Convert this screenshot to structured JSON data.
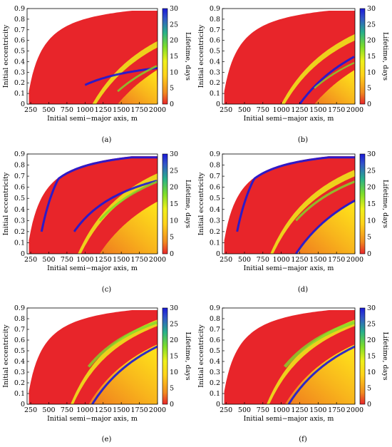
{
  "figure": {
    "panels": [
      {
        "id": "a",
        "caption": "(a)"
      },
      {
        "id": "b",
        "caption": "(b)"
      },
      {
        "id": "c",
        "caption": "(c)"
      },
      {
        "id": "d",
        "caption": "(d)"
      },
      {
        "id": "e",
        "caption": "(e)"
      },
      {
        "id": "f",
        "caption": "(f)"
      }
    ]
  },
  "chart_data": {
    "type": "heatmap",
    "xlabel": "Initial semi−major axis, m",
    "ylabel": "Initial eccentricity",
    "colorbar_label": "Lifetime, days",
    "xlim": [
      200,
      2000
    ],
    "ylim": [
      0,
      0.9
    ],
    "xticks": [
      250,
      500,
      750,
      1000,
      1250,
      1500,
      1750,
      2000
    ],
    "yticks": [
      0,
      0.1,
      0.2,
      0.3,
      0.4,
      0.5,
      0.6,
      0.7,
      0.8,
      0.9
    ],
    "colorbar_range": [
      0,
      30
    ],
    "colorbar_ticks": [
      0,
      5,
      10,
      15,
      20,
      25,
      30
    ],
    "colormap": [
      "#e8252a",
      "#f08a20",
      "#ffd21a",
      "#eef01a",
      "#7ddd2a",
      "#28b08a",
      "#3355c8",
      "#1a1ad8"
    ],
    "panels": [
      {
        "id": "a",
        "caption": "(a)"
      },
      {
        "id": "b",
        "caption": "(b)"
      },
      {
        "id": "c",
        "caption": "(c)"
      },
      {
        "id": "d",
        "caption": "(d)"
      },
      {
        "id": "e",
        "caption": "(e)"
      },
      {
        "id": "f",
        "caption": "(f)"
      }
    ]
  }
}
